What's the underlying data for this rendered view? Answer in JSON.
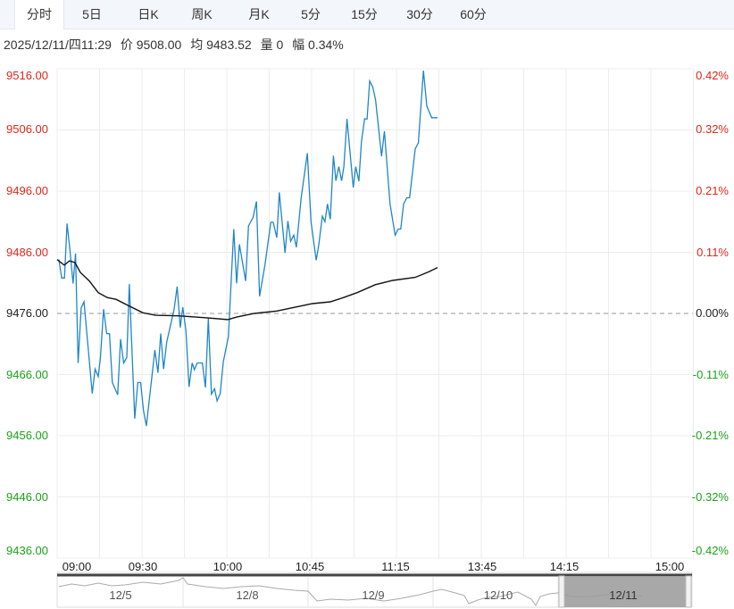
{
  "tabs": [
    {
      "label": "分时",
      "active": true
    },
    {
      "label": "5日"
    },
    {
      "label": "日K"
    },
    {
      "label": "周K"
    },
    {
      "label": "月K"
    },
    {
      "label": "5分"
    },
    {
      "label": "15分"
    },
    {
      "label": "30分"
    },
    {
      "label": "60分"
    }
  ],
  "info": {
    "datetime": "2025/12/11/四11:29",
    "price": "价 9508.00",
    "avg": "均 9483.52",
    "volume": "量 0",
    "range": "幅 0.34%"
  },
  "colors": {
    "price_line": "#1f86c8",
    "avg_line": "#111111",
    "up": "#e0261b",
    "down": "#1aa31a"
  },
  "chart_data": {
    "type": "line",
    "base_price": 9476,
    "ylim": [
      9436,
      9516
    ],
    "y_ticks_left": [
      "9516.00",
      "9506.00",
      "9496.00",
      "9486.00",
      "9476.00",
      "9466.00",
      "9456.00",
      "9446.00",
      "9436.00"
    ],
    "y_ticks_right": [
      "0.42%",
      "0.32%",
      "0.21%",
      "0.11%",
      "0.00%",
      "-0.11%",
      "-0.21%",
      "-0.32%",
      "-0.42%"
    ],
    "x_ticks": [
      "09:00",
      "09:30",
      "10:00",
      "10:45",
      "11:15",
      "13:45",
      "14:15",
      "15:00"
    ],
    "x_unit": "trading minutes since 09:00",
    "xlim": [
      0,
      225
    ],
    "series": [
      {
        "name": "price",
        "points": [
          [
            0.6,
            9484.8
          ],
          [
            1.6,
            9481.8
          ],
          [
            2.6,
            9481.8
          ],
          [
            3.5,
            9490.7
          ],
          [
            4.5,
            9486.4
          ],
          [
            5.6,
            9480.9
          ],
          [
            6.5,
            9485.8
          ],
          [
            7.4,
            9467.9
          ],
          [
            8.5,
            9476.9
          ],
          [
            9.5,
            9477.9
          ],
          [
            12.4,
            9462.9
          ],
          [
            13.4,
            9466.9
          ],
          [
            14.5,
            9465.7
          ],
          [
            15.3,
            9468.8
          ],
          [
            16.4,
            9476.7
          ],
          [
            17.5,
            9472.7
          ],
          [
            18.5,
            9472.7
          ],
          [
            19.5,
            9464.7
          ],
          [
            21.4,
            9462.7
          ],
          [
            22.4,
            9471.8
          ],
          [
            23.5,
            9467.9
          ],
          [
            24.6,
            9468.8
          ],
          [
            25.5,
            9480.8
          ],
          [
            27.4,
            9458.8
          ],
          [
            28.5,
            9464.7
          ],
          [
            29.5,
            9464.7
          ],
          [
            30.5,
            9460.1
          ],
          [
            31.5,
            9457.6
          ],
          [
            33.4,
            9465.4
          ],
          [
            34.5,
            9470.0
          ],
          [
            35.6,
            9466.3
          ],
          [
            36.6,
            9472.7
          ],
          [
            37.6,
            9466.9
          ],
          [
            38.7,
            9471.3
          ],
          [
            41.3,
            9476.6
          ],
          [
            42.4,
            9480.4
          ],
          [
            43.5,
            9473.7
          ],
          [
            44.4,
            9477.0
          ],
          [
            45.5,
            9473.2
          ],
          [
            46.6,
            9464.0
          ],
          [
            47.7,
            9467.9
          ],
          [
            48.5,
            9466.8
          ],
          [
            49.5,
            9467.9
          ],
          [
            51.3,
            9467.9
          ],
          [
            52.4,
            9463.9
          ],
          [
            53.4,
            9475.2
          ],
          [
            54.5,
            9462.8
          ],
          [
            55.6,
            9463.7
          ],
          [
            56.5,
            9461.7
          ],
          [
            57.6,
            9462.9
          ],
          [
            58.7,
            9468.1
          ],
          [
            60.5,
            9472.2
          ],
          [
            62.4,
            9489.8
          ],
          [
            63.4,
            9480.9
          ],
          [
            64.4,
            9487.3
          ],
          [
            66.6,
            9481.3
          ],
          [
            67.6,
            9490.3
          ],
          [
            69.2,
            9491.7
          ],
          [
            70.4,
            9494.3
          ],
          [
            71.5,
            9478.8
          ],
          [
            73.4,
            9483.9
          ],
          [
            75.5,
            9490.9
          ],
          [
            76.3,
            9490.9
          ],
          [
            77.6,
            9488.4
          ],
          [
            78.5,
            9495.8
          ],
          [
            80.5,
            9485.9
          ],
          [
            81.5,
            9491.1
          ],
          [
            82.5,
            9487.8
          ],
          [
            83.6,
            9488.8
          ],
          [
            84.5,
            9486.8
          ],
          [
            86.2,
            9494.9
          ],
          [
            88.4,
            9502.2
          ],
          [
            89.7,
            9491.0
          ],
          [
            91.5,
            9484.7
          ],
          [
            92.4,
            9487.1
          ],
          [
            93.7,
            9491.9
          ],
          [
            94.6,
            9491.0
          ],
          [
            95.5,
            9493.9
          ],
          [
            96.5,
            9491.4
          ],
          [
            97.6,
            9501.8
          ],
          [
            98.5,
            9497.7
          ],
          [
            99.5,
            9500.0
          ],
          [
            100.5,
            9497.7
          ],
          [
            101.3,
            9500.0
          ],
          [
            102.4,
            9507.8
          ],
          [
            104.6,
            9496.6
          ],
          [
            105.5,
            9500.0
          ],
          [
            106.6,
            9497.6
          ],
          [
            107.5,
            9504.1
          ],
          [
            108.6,
            9507.8
          ],
          [
            109.5,
            9507.8
          ],
          [
            110.4,
            9514.0
          ],
          [
            111.5,
            9513.0
          ],
          [
            112.5,
            9510.9
          ],
          [
            114.6,
            9501.7
          ],
          [
            115.6,
            9505.8
          ],
          [
            117.6,
            9493.9
          ],
          [
            119.4,
            9488.8
          ],
          [
            120.5,
            9489.8
          ],
          [
            121.4,
            9489.8
          ],
          [
            122.4,
            9493.9
          ],
          [
            123.5,
            9494.9
          ],
          [
            124.5,
            9494.9
          ],
          [
            126.5,
            9502.9
          ],
          [
            127.6,
            9503.9
          ],
          [
            129.4,
            9515.7
          ],
          [
            130.6,
            9509.9
          ],
          [
            132.3,
            9508.0
          ],
          [
            134.4,
            9508.0
          ]
        ]
      },
      {
        "name": "average",
        "points": [
          [
            0,
            9484.8
          ],
          [
            2.5,
            9483.9
          ],
          [
            4.4,
            9484.6
          ],
          [
            6.3,
            9484.3
          ],
          [
            8.2,
            9482.7
          ],
          [
            11.4,
            9481.3
          ],
          [
            14.5,
            9479.4
          ],
          [
            17.7,
            9478.6
          ],
          [
            20.8,
            9478.3
          ],
          [
            25.5,
            9477.2
          ],
          [
            30.3,
            9476.1
          ],
          [
            34.9,
            9475.7
          ],
          [
            42.9,
            9475.6
          ],
          [
            52.4,
            9475.3
          ],
          [
            60.3,
            9475.0
          ],
          [
            63.4,
            9475.4
          ],
          [
            69.7,
            9476.0
          ],
          [
            77.6,
            9476.4
          ],
          [
            84,
            9477.0
          ],
          [
            90.2,
            9477.6
          ],
          [
            96.5,
            9477.9
          ],
          [
            101.2,
            9478.6
          ],
          [
            106,
            9479.4
          ],
          [
            112.4,
            9480.7
          ],
          [
            118.6,
            9481.4
          ],
          [
            126.5,
            9481.9
          ],
          [
            131.3,
            9482.8
          ],
          [
            134.4,
            9483.5
          ]
        ]
      }
    ]
  },
  "navigator": {
    "days": [
      "12/5",
      "12/8",
      "12/9",
      "12/10",
      "12/11"
    ],
    "selected": "12/11"
  }
}
